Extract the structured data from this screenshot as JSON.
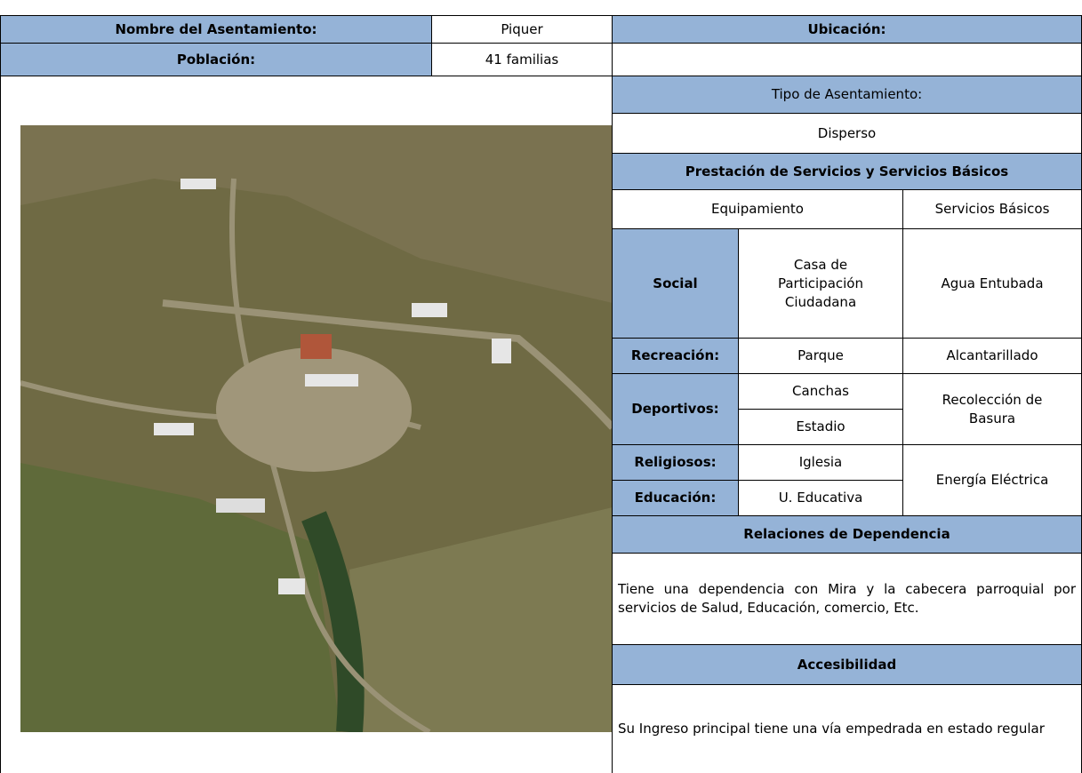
{
  "header": {
    "name_label": "Nombre del Asentamiento:",
    "name": "Piquer",
    "location_label": "Ubicación:",
    "population_label": "Población:",
    "population": "41 familias"
  },
  "settlement": {
    "type_label": "Tipo de Asentamiento:",
    "type": "Disperso"
  },
  "services": {
    "title": "Prestación de Servicios y Servicios Básicos",
    "equipment_header": "Equipamiento",
    "basic_header": "Servicios Básicos",
    "rows": [
      {
        "category": "Social",
        "equipment": "Casa de Participación Ciudadana",
        "basic": "Agua Entubada"
      },
      {
        "category": "Recreación:",
        "equipment": "Parque",
        "basic": "Alcantarillado"
      },
      {
        "category": "Deportivos:",
        "equipment": [
          "Canchas",
          "Estadio"
        ],
        "basic": "Recolección de Basura"
      },
      {
        "category": "Religiosos:",
        "equipment": "Iglesia"
      },
      {
        "category": "Educación:",
        "equipment": "U. Educativa"
      }
    ],
    "shared_basic": "Energía Eléctrica"
  },
  "dependency": {
    "title": "Relaciones de Dependencia",
    "text": "Tiene una dependencia con Mira y la cabecera parroquial por servicios de Salud, Educación, comercio, Etc."
  },
  "access": {
    "title": "Accesibilidad",
    "text": "Su Ingreso principal tiene una vía empedrada en estado regular"
  }
}
